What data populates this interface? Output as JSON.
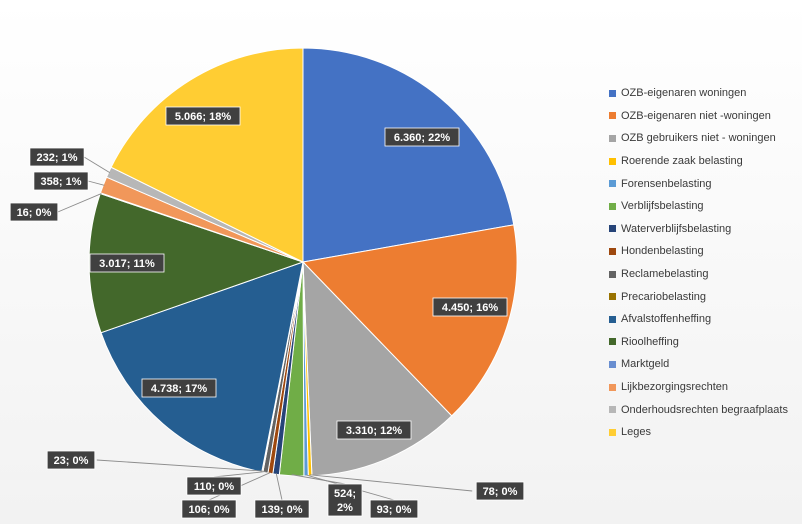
{
  "chart_data": {
    "type": "pie",
    "title": "",
    "slices": [
      {
        "name": "OZB-eigenaren woningen",
        "value": 6360,
        "label": "6.360; 22%",
        "color": "#4472C4"
      },
      {
        "name": "OZB-eigenaren niet -woningen",
        "value": 4450,
        "label": "4.450; 16%",
        "color": "#ED7D31"
      },
      {
        "name": "OZB gebruikers niet - woningen",
        "value": 3310,
        "label": "3.310; 12%",
        "color": "#A5A5A5"
      },
      {
        "name": "Roerende zaak belasting",
        "value": 78,
        "label": "78; 0%",
        "color": "#FFC000"
      },
      {
        "name": "Forensenbelasting",
        "value": 93,
        "label": "93; 0%",
        "color": "#5B9BD5"
      },
      {
        "name": "Verblijfsbelasting",
        "value": 524,
        "label": "524; 2%",
        "color": "#70AD47"
      },
      {
        "name": "Waterverblijfsbelasting",
        "value": 139,
        "label": "139; 0%",
        "color": "#264478"
      },
      {
        "name": "Hondenbelasting",
        "value": 106,
        "label": "106; 0%",
        "color": "#9E480E"
      },
      {
        "name": "Reclamebelasting",
        "value": 110,
        "label": "110; 0%",
        "color": "#636363"
      },
      {
        "name": "Precariobelasting",
        "value": 23,
        "label": "23; 0%",
        "color": "#997300"
      },
      {
        "name": "Afvalstoffenheffing",
        "value": 4738,
        "label": "4.738; 17%",
        "color": "#255E91"
      },
      {
        "name": "Rioolheffing",
        "value": 3017,
        "label": "3.017; 11%",
        "color": "#43682B"
      },
      {
        "name": "Marktgeld",
        "value": 16,
        "label": "16; 0%",
        "color": "#698ED0"
      },
      {
        "name": "Lijkbezorgingsrechten",
        "value": 358,
        "label": "358; 1%",
        "color": "#F1975A"
      },
      {
        "name": "Onderhoudsrechten begraafplaats",
        "value": 232,
        "label": "232; 1%",
        "color": "#B7B7B7"
      },
      {
        "name": "Leges",
        "value": 5066,
        "label": "5.066; 18%",
        "color": "#FFCD33"
      }
    ],
    "legend_position": "right"
  }
}
